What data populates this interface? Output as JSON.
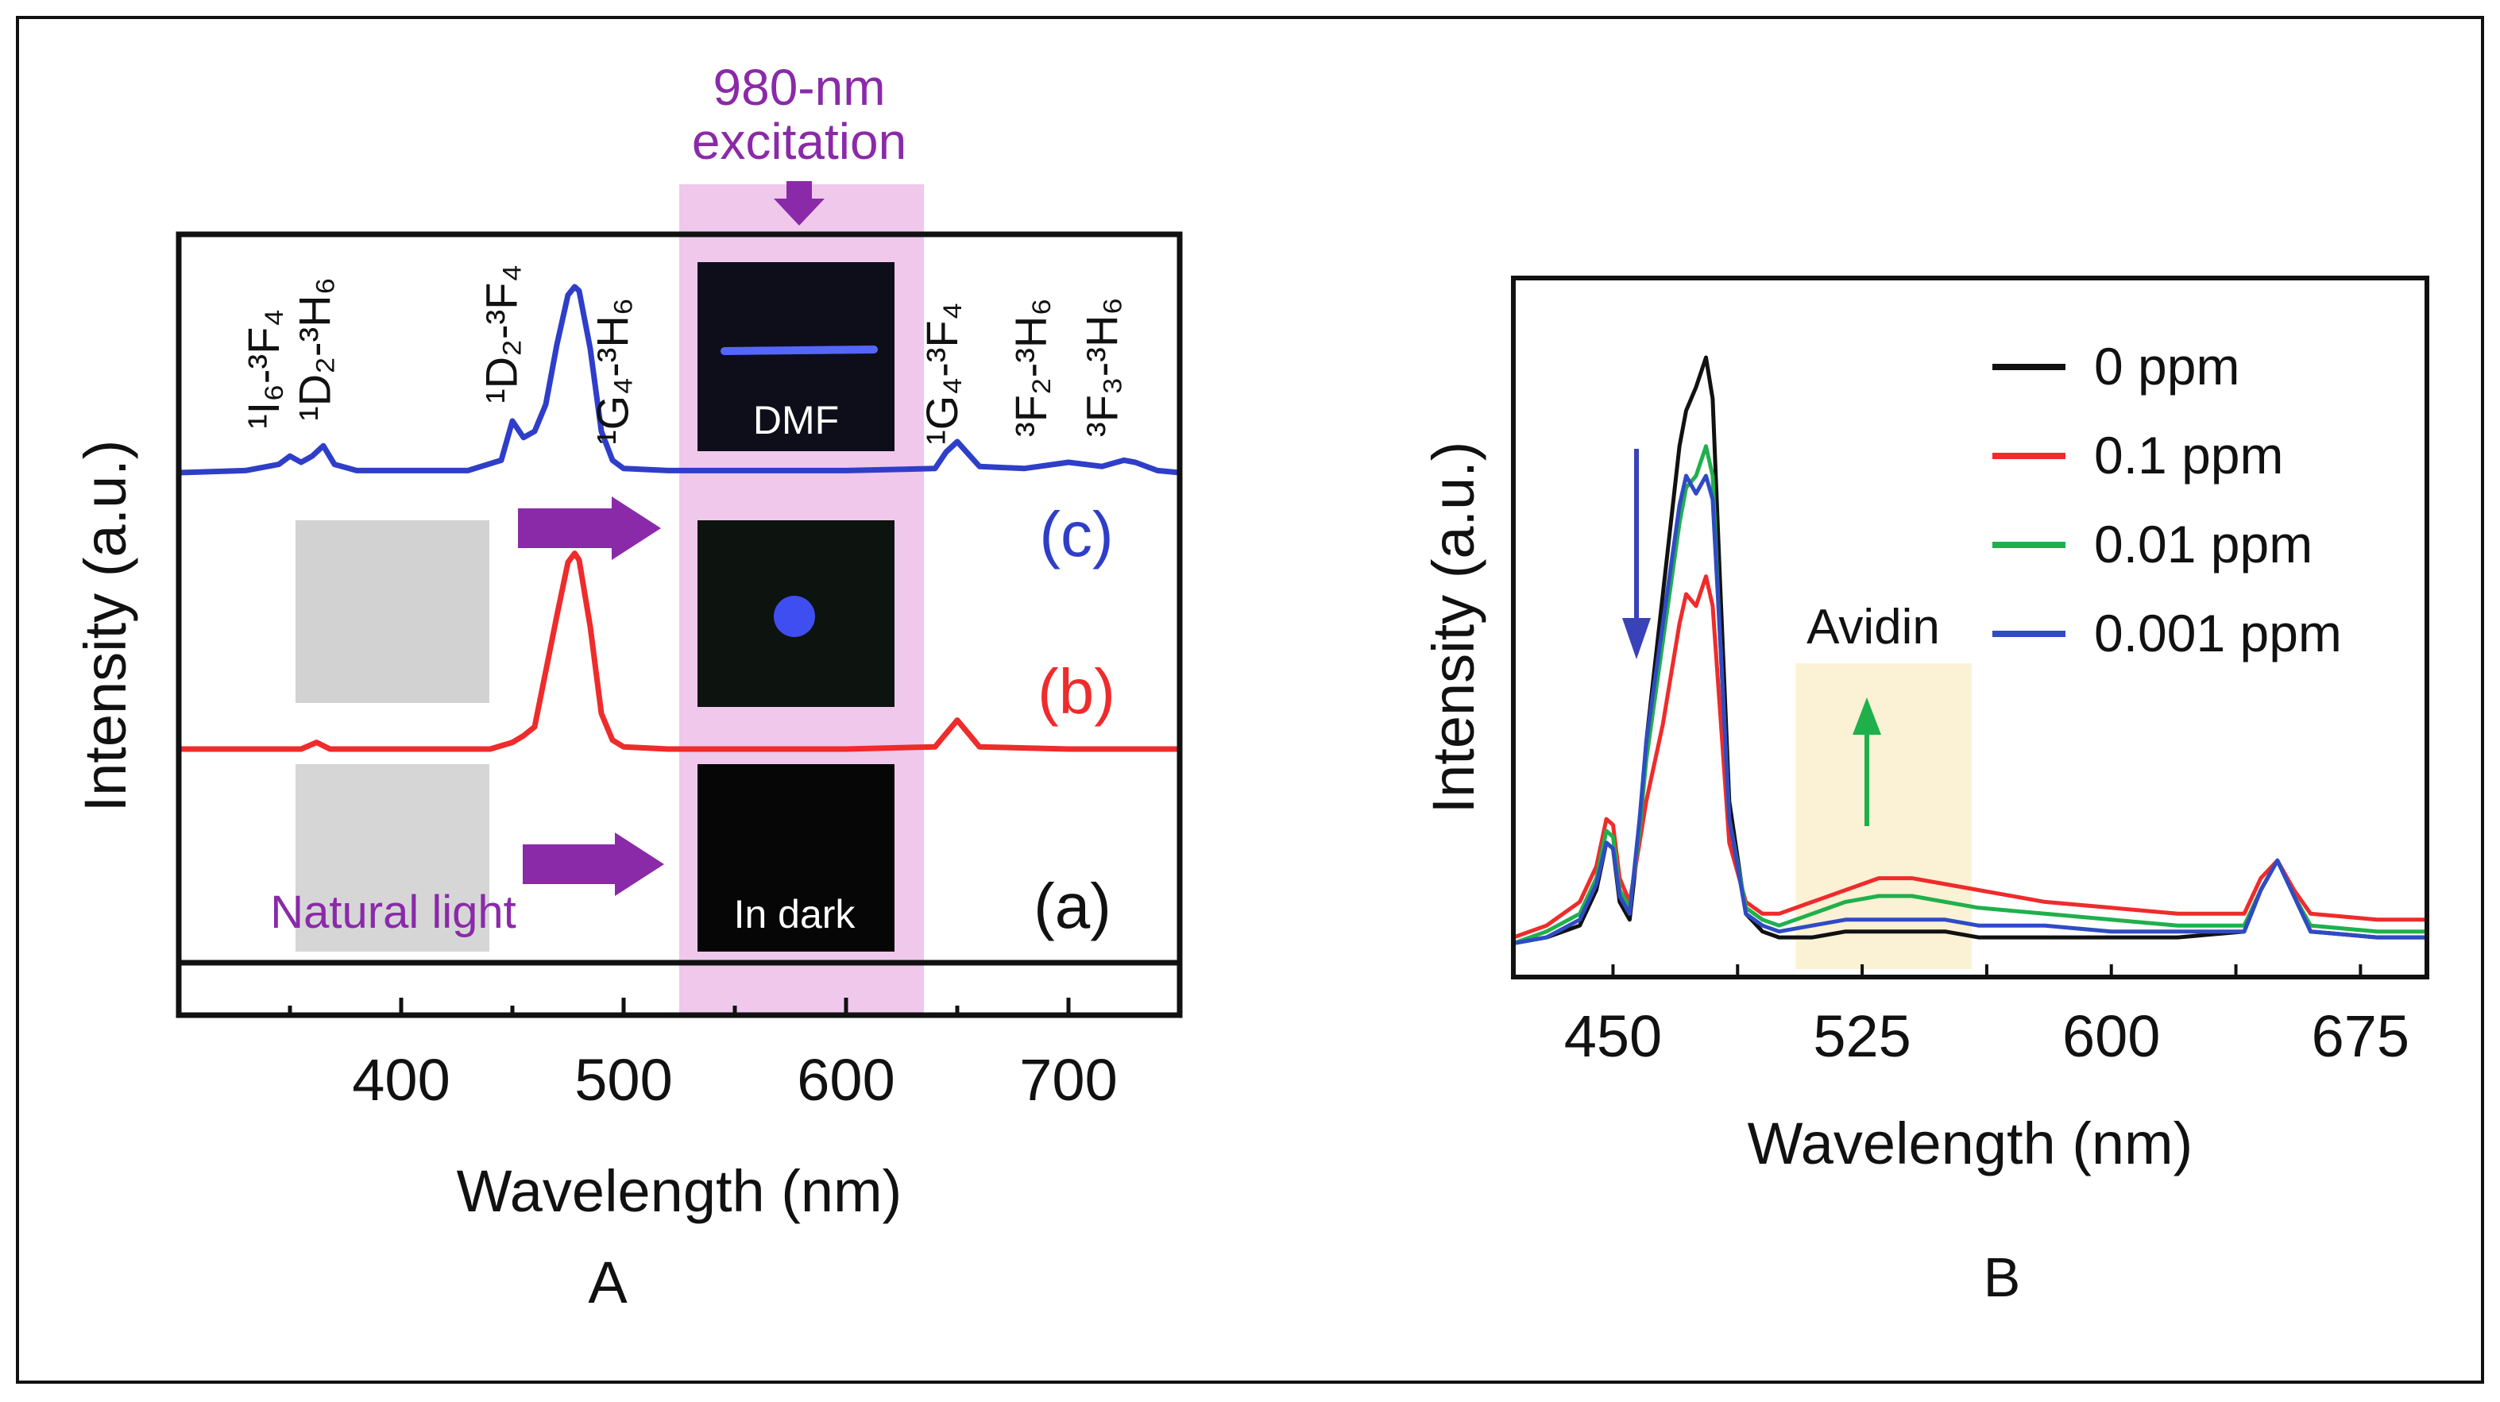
{
  "colors": {
    "blue": "#2f3ec9",
    "red": "#ef2b2b",
    "green": "#1fb04c",
    "black": "#111111",
    "purple": "#8a2aa8",
    "pink_band": "#efc8ec",
    "yellow_band": "#fbf1d4"
  },
  "chart_data": [
    {
      "panel_label": "A",
      "type": "line",
      "xlabel": "Wavelength (nm)",
      "ylabel": "Intensity (a.u.)",
      "xlim": [
        300,
        750
      ],
      "xticks": [
        400,
        500,
        600,
        700
      ],
      "excitation_band_nm": [
        525,
        635
      ],
      "excitation_label": [
        "980-nm",
        "excitation"
      ],
      "series": [
        {
          "name": "(c)",
          "label": "(c)",
          "color": "#2f3ec9",
          "x": [
            300,
            330,
            345,
            350,
            355,
            360,
            365,
            370,
            380,
            400,
            430,
            445,
            450,
            455,
            460,
            465,
            470,
            475,
            478,
            480,
            485,
            490,
            495,
            500,
            520,
            600,
            640,
            645,
            650,
            655,
            660,
            680,
            700,
            715,
            725,
            730,
            740,
            750
          ],
          "y": [
            0,
            0.01,
            0.04,
            0.08,
            0.05,
            0.08,
            0.13,
            0.04,
            0.01,
            0.01,
            0.01,
            0.06,
            0.25,
            0.17,
            0.2,
            0.33,
            0.62,
            0.86,
            0.9,
            0.88,
            0.6,
            0.2,
            0.06,
            0.02,
            0.01,
            0.01,
            0.02,
            0.1,
            0.15,
            0.09,
            0.03,
            0.02,
            0.05,
            0.03,
            0.06,
            0.05,
            0.01,
            0
          ]
        },
        {
          "name": "(b)",
          "label": "(b)",
          "color": "#ef2b2b",
          "x": [
            300,
            355,
            362,
            368,
            400,
            440,
            450,
            455,
            460,
            465,
            470,
            475,
            478,
            480,
            485,
            490,
            495,
            500,
            520,
            600,
            640,
            645,
            650,
            655,
            660,
            700,
            750
          ],
          "y": [
            0,
            0,
            0.03,
            0,
            0,
            0,
            0.03,
            0.06,
            0.1,
            0.35,
            0.6,
            0.84,
            0.88,
            0.85,
            0.55,
            0.16,
            0.04,
            0.01,
            0,
            0,
            0.01,
            0.07,
            0.13,
            0.07,
            0.01,
            0,
            0
          ]
        },
        {
          "name": "(a)",
          "label": "(a)",
          "color": "#111111",
          "x": [
            300,
            750
          ],
          "y": [
            0,
            0
          ]
        }
      ],
      "transition_labels": [
        {
          "text": "¹I₆-³F₄",
          "x_nm": 345
        },
        {
          "text": "¹D₂-³H₆",
          "x_nm": 368
        },
        {
          "text": "¹D₂-³F₄",
          "x_nm": 452
        },
        {
          "text": "¹G₄-³H₆",
          "x_nm": 502
        },
        {
          "text": "¹G₄-³F₄",
          "x_nm": 650
        },
        {
          "text": "³F₂-³H₆",
          "x_nm": 690
        },
        {
          "text": "³F₃-³H₆",
          "x_nm": 722
        }
      ],
      "insets": {
        "dmf": "DMF",
        "in_dark": "In dark",
        "natural_light": "Natural light"
      }
    },
    {
      "panel_label": "B",
      "type": "line",
      "xlabel": "Wavelength (nm)",
      "ylabel": "Intensity (a.u.)",
      "xlim": [
        420,
        695
      ],
      "xticks": [
        450,
        525,
        600,
        675
      ],
      "avidin_band_nm": [
        505,
        558
      ],
      "annotation": "Avidin",
      "series": [
        {
          "name": "0 ppm",
          "color": "#111111",
          "x": [
            420,
            430,
            440,
            445,
            448,
            450,
            452,
            455,
            458,
            460,
            465,
            470,
            472,
            475,
            478,
            480,
            482,
            485,
            490,
            495,
            500,
            510,
            520,
            530,
            540,
            550,
            560,
            580,
            600,
            620,
            640,
            645,
            650,
            655,
            660,
            680,
            695
          ],
          "y": [
            0.01,
            0.02,
            0.04,
            0.1,
            0.18,
            0.17,
            0.08,
            0.05,
            0.2,
            0.35,
            0.6,
            0.85,
            0.91,
            0.95,
            1.0,
            0.93,
            0.65,
            0.25,
            0.06,
            0.03,
            0.02,
            0.02,
            0.03,
            0.03,
            0.03,
            0.03,
            0.02,
            0.02,
            0.02,
            0.02,
            0.03,
            0.1,
            0.15,
            0.09,
            0.03,
            0.02,
            0.02
          ]
        },
        {
          "name": "0.1 ppm",
          "color": "#ef2b2b",
          "x": [
            420,
            430,
            440,
            445,
            448,
            450,
            452,
            455,
            458,
            460,
            465,
            470,
            472,
            475,
            478,
            480,
            482,
            485,
            490,
            495,
            500,
            510,
            520,
            530,
            540,
            550,
            560,
            580,
            600,
            620,
            640,
            645,
            650,
            655,
            660,
            680,
            695
          ],
          "y": [
            0.02,
            0.04,
            0.08,
            0.14,
            0.22,
            0.21,
            0.12,
            0.08,
            0.18,
            0.25,
            0.38,
            0.55,
            0.6,
            0.58,
            0.63,
            0.58,
            0.42,
            0.18,
            0.08,
            0.06,
            0.06,
            0.08,
            0.1,
            0.12,
            0.12,
            0.11,
            0.1,
            0.08,
            0.07,
            0.06,
            0.06,
            0.12,
            0.15,
            0.1,
            0.06,
            0.05,
            0.05
          ]
        },
        {
          "name": "0.01 ppm",
          "color": "#1fb04c",
          "x": [
            420,
            430,
            440,
            445,
            448,
            450,
            452,
            455,
            458,
            460,
            465,
            470,
            472,
            475,
            478,
            480,
            482,
            485,
            490,
            495,
            500,
            510,
            520,
            530,
            540,
            550,
            560,
            580,
            600,
            620,
            640,
            645,
            650,
            655,
            660,
            680,
            695
          ],
          "y": [
            0.01,
            0.03,
            0.06,
            0.12,
            0.2,
            0.19,
            0.1,
            0.07,
            0.2,
            0.32,
            0.52,
            0.72,
            0.78,
            0.8,
            0.85,
            0.8,
            0.55,
            0.22,
            0.07,
            0.05,
            0.04,
            0.06,
            0.08,
            0.09,
            0.09,
            0.08,
            0.07,
            0.06,
            0.05,
            0.04,
            0.04,
            0.1,
            0.15,
            0.09,
            0.04,
            0.03,
            0.03
          ]
        },
        {
          "name": "0.001 ppm",
          "color": "#2f4bc4",
          "x": [
            420,
            430,
            440,
            445,
            448,
            450,
            452,
            455,
            458,
            460,
            465,
            470,
            472,
            475,
            478,
            480,
            482,
            485,
            490,
            495,
            500,
            510,
            520,
            530,
            540,
            550,
            560,
            580,
            600,
            620,
            640,
            645,
            650,
            655,
            660,
            680,
            695
          ],
          "y": [
            0.01,
            0.02,
            0.05,
            0.11,
            0.18,
            0.17,
            0.09,
            0.06,
            0.22,
            0.35,
            0.55,
            0.75,
            0.8,
            0.77,
            0.8,
            0.76,
            0.55,
            0.22,
            0.06,
            0.04,
            0.03,
            0.04,
            0.05,
            0.05,
            0.05,
            0.05,
            0.04,
            0.04,
            0.03,
            0.03,
            0.03,
            0.1,
            0.15,
            0.09,
            0.03,
            0.02,
            0.02
          ]
        }
      ]
    }
  ]
}
